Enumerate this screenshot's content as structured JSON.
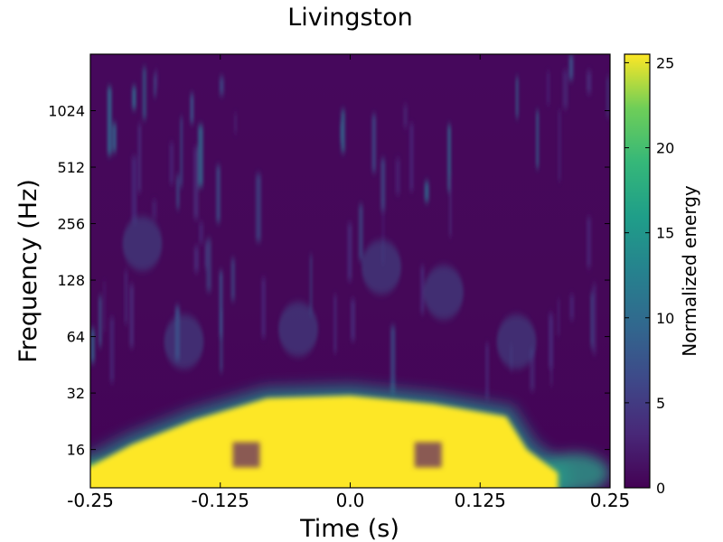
{
  "chart_data": {
    "type": "heatmap",
    "title": "Livingston",
    "xlabel": "Time (s)",
    "ylabel": "Frequency (Hz)",
    "colorbar_label": "Normalized energy",
    "xlim": [
      -0.25,
      0.25
    ],
    "ylim_hz": [
      10,
      2048
    ],
    "y_scale": "log2",
    "x_ticks": [
      -0.25,
      -0.125,
      0.0,
      0.125,
      0.25
    ],
    "x_tick_labels": [
      "-0.25",
      "-0.125",
      "0.0",
      "0.125",
      "0.25"
    ],
    "y_ticks": [
      16,
      32,
      64,
      128,
      256,
      512,
      1024
    ],
    "y_tick_labels": [
      "16",
      "32",
      "64",
      "128",
      "256",
      "512",
      "1024"
    ],
    "colorbar_range": [
      0,
      25.5
    ],
    "colorbar_ticks": [
      0,
      5,
      10,
      15,
      20,
      25
    ],
    "colorbar_tick_labels": [
      "0",
      "5",
      "10",
      "15",
      "20",
      "25"
    ],
    "colormap": "viridis",
    "colors": {
      "low": "#440154",
      "mid": "#21918c",
      "high": "#fde725"
    },
    "high_energy_region": {
      "description": "Saturated band below ~32 Hz spanning the interval",
      "upper_edge": [
        {
          "t": -0.25,
          "f": 13
        },
        {
          "t": -0.21,
          "f": 17
        },
        {
          "t": -0.15,
          "f": 23
        },
        {
          "t": -0.08,
          "f": 30
        },
        {
          "t": 0.0,
          "f": 31
        },
        {
          "t": 0.08,
          "f": 28
        },
        {
          "t": 0.15,
          "f": 24
        },
        {
          "t": 0.17,
          "f": 16
        },
        {
          "t": 0.2,
          "f": 12
        }
      ]
    },
    "dips": [
      {
        "t": -0.1,
        "f": 15,
        "energy": 8
      },
      {
        "t": 0.075,
        "f": 15,
        "energy": 8
      }
    ]
  }
}
